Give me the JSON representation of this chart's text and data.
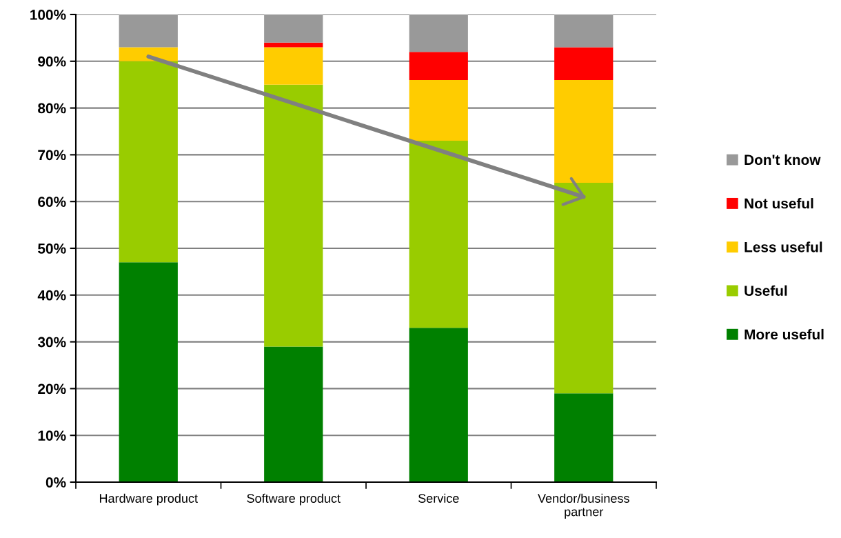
{
  "chart_data": {
    "type": "bar",
    "stacked": true,
    "categories": [
      "Hardware product",
      "Software product",
      "Service",
      "Vendor/business\npartner"
    ],
    "series": [
      {
        "name": "More useful",
        "color": "#008000",
        "values": [
          47,
          29,
          33,
          19
        ]
      },
      {
        "name": "Useful",
        "color": "#99cc00",
        "values": [
          43,
          56,
          40,
          45
        ]
      },
      {
        "name": "Less useful",
        "color": "#ffcc00",
        "values": [
          3,
          8,
          13,
          22
        ]
      },
      {
        "name": "Not useful",
        "color": "#ff0000",
        "values": [
          0,
          1,
          6,
          7
        ]
      },
      {
        "name": "Don't know",
        "color": "#999999",
        "values": [
          7,
          6,
          8,
          7
        ]
      },
      {
        "type": "line",
        "color": "#808080",
        "values": [
          91,
          81,
          71,
          61
        ]
      }
    ],
    "ylim": [
      0,
      100
    ],
    "yticks": [
      {
        "value": 0,
        "label": "0%"
      },
      {
        "value": 10,
        "label": "10%"
      },
      {
        "value": 20,
        "label": "20%"
      },
      {
        "value": 30,
        "label": "30%"
      },
      {
        "value": 40,
        "label": "40%"
      },
      {
        "value": 50,
        "label": "50%"
      },
      {
        "value": 60,
        "label": "60%"
      },
      {
        "value": 70,
        "label": "70%"
      },
      {
        "value": 80,
        "label": "80%"
      },
      {
        "value": 90,
        "label": "90%"
      },
      {
        "value": 100,
        "label": "100%"
      }
    ],
    "grid": "y",
    "legend": "right"
  }
}
